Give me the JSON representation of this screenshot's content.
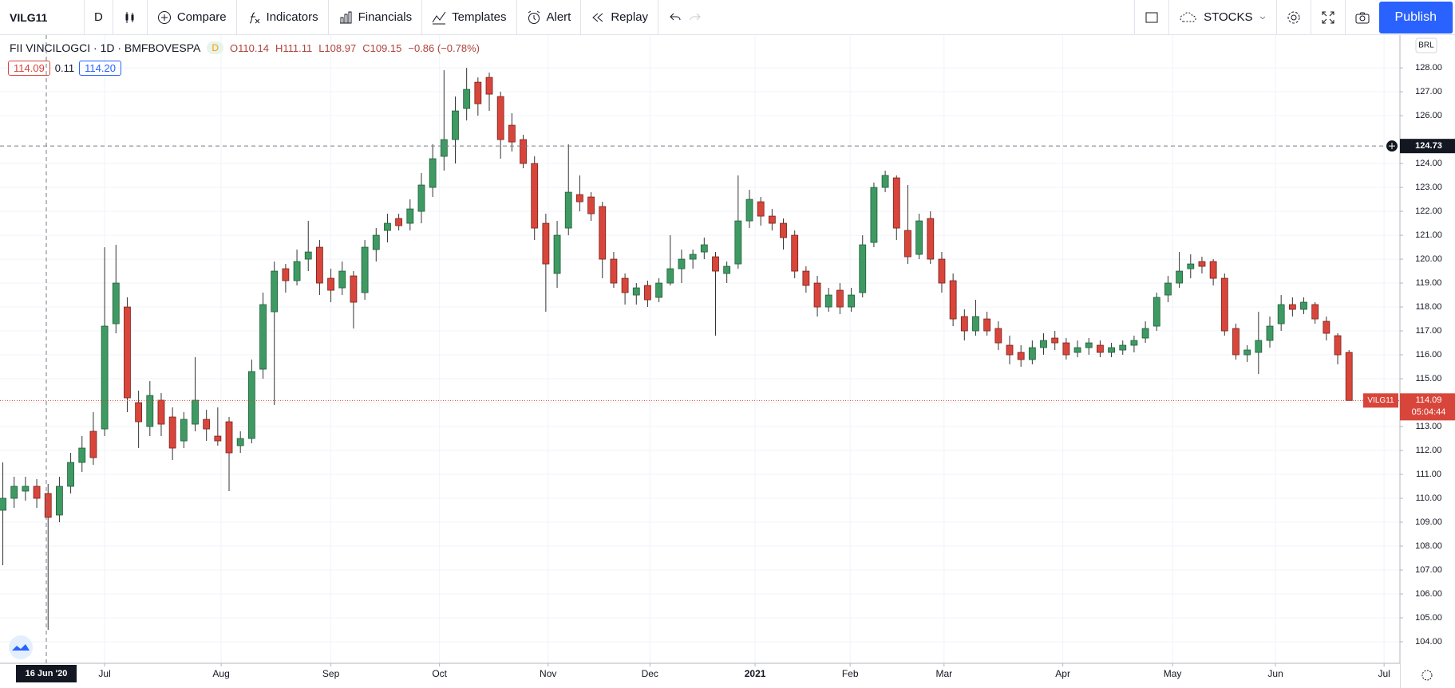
{
  "toolbar": {
    "symbol": "VILG11",
    "interval": "D",
    "buttons": [
      "Compare",
      "Indicators",
      "Financials",
      "Templates",
      "Alert",
      "Replay"
    ],
    "market": "STOCKS",
    "publish": "Publish"
  },
  "legend": {
    "title": "FII VINCILOGCI · 1D · BMFBOVESPA",
    "flag": "D",
    "open": "O110.14",
    "high": "H111.11",
    "low": "L108.97",
    "close": "C109.15",
    "change": "−0.86 (−0.78%)"
  },
  "bid_ask": {
    "bid": "114.09",
    "spread": "0.11",
    "ask": "114.20"
  },
  "currency": "BRL",
  "chart_data": {
    "type": "candlestick",
    "up_color": "#3e9a62",
    "down_color": "#d8463b",
    "ohlc": [
      [
        109.5,
        111.5,
        107.2,
        110.0
      ],
      [
        110.0,
        110.9,
        109.6,
        110.5
      ],
      [
        110.3,
        110.9,
        109.9,
        110.5
      ],
      [
        110.5,
        110.8,
        109.6,
        110.0
      ],
      [
        110.2,
        110.6,
        104.5,
        109.2
      ],
      [
        109.3,
        110.9,
        109.0,
        110.5
      ],
      [
        110.5,
        111.9,
        110.2,
        111.5
      ],
      [
        111.5,
        112.6,
        111.1,
        112.1
      ],
      [
        112.8,
        113.6,
        111.4,
        111.7
      ],
      [
        112.9,
        120.5,
        112.6,
        117.2
      ],
      [
        117.3,
        120.6,
        116.9,
        119.0
      ],
      [
        118.0,
        118.4,
        113.6,
        114.2
      ],
      [
        114.0,
        114.5,
        112.1,
        113.2
      ],
      [
        113.0,
        114.9,
        112.6,
        114.3
      ],
      [
        114.1,
        114.4,
        112.6,
        113.1
      ],
      [
        113.4,
        113.8,
        111.6,
        112.1
      ],
      [
        112.4,
        113.6,
        112.1,
        113.3
      ],
      [
        113.1,
        115.9,
        112.8,
        114.1
      ],
      [
        113.3,
        113.7,
        112.4,
        112.9
      ],
      [
        112.6,
        113.8,
        112.2,
        112.4
      ],
      [
        113.2,
        113.4,
        110.3,
        111.9
      ],
      [
        112.2,
        112.8,
        111.9,
        112.5
      ],
      [
        112.5,
        115.8,
        112.3,
        115.3
      ],
      [
        115.4,
        118.6,
        115.0,
        118.1
      ],
      [
        117.8,
        119.9,
        113.9,
        119.5
      ],
      [
        119.6,
        119.8,
        118.6,
        119.1
      ],
      [
        119.1,
        120.4,
        118.9,
        119.9
      ],
      [
        120.0,
        121.6,
        119.5,
        120.3
      ],
      [
        120.5,
        120.8,
        118.5,
        119.0
      ],
      [
        119.2,
        119.6,
        118.2,
        118.7
      ],
      [
        118.8,
        119.9,
        118.5,
        119.5
      ],
      [
        119.3,
        119.5,
        117.1,
        118.2
      ],
      [
        118.6,
        120.8,
        118.3,
        120.5
      ],
      [
        120.4,
        121.3,
        119.9,
        121.0
      ],
      [
        121.2,
        121.9,
        120.7,
        121.5
      ],
      [
        121.7,
        121.9,
        121.2,
        121.4
      ],
      [
        121.5,
        122.5,
        121.2,
        122.1
      ],
      [
        122.0,
        123.6,
        121.5,
        123.1
      ],
      [
        123.0,
        124.8,
        122.6,
        124.2
      ],
      [
        124.3,
        127.9,
        123.7,
        125.0
      ],
      [
        125.0,
        126.8,
        124.0,
        126.2
      ],
      [
        126.3,
        128.0,
        125.8,
        127.1
      ],
      [
        127.4,
        127.6,
        126.0,
        126.5
      ],
      [
        127.6,
        127.8,
        126.2,
        126.9
      ],
      [
        126.8,
        127.0,
        124.2,
        125.0
      ],
      [
        125.6,
        126.1,
        124.5,
        124.9
      ],
      [
        125.0,
        125.2,
        123.8,
        124.0
      ],
      [
        124.0,
        124.3,
        120.8,
        121.3
      ],
      [
        121.5,
        121.9,
        117.8,
        119.8
      ],
      [
        119.4,
        121.6,
        118.8,
        121.0
      ],
      [
        121.3,
        124.8,
        121.0,
        122.8
      ],
      [
        122.7,
        123.5,
        122.0,
        122.4
      ],
      [
        122.6,
        122.8,
        121.6,
        121.9
      ],
      [
        122.2,
        122.4,
        119.2,
        120.0
      ],
      [
        120.0,
        120.3,
        118.8,
        119.0
      ],
      [
        119.2,
        119.4,
        118.1,
        118.6
      ],
      [
        118.5,
        119.0,
        118.1,
        118.8
      ],
      [
        118.9,
        119.1,
        118.0,
        118.3
      ],
      [
        118.4,
        119.2,
        118.2,
        119.0
      ],
      [
        119.0,
        121.0,
        118.9,
        119.6
      ],
      [
        119.6,
        120.4,
        119.0,
        120.0
      ],
      [
        120.0,
        120.4,
        119.6,
        120.2
      ],
      [
        120.3,
        120.9,
        120.0,
        120.6
      ],
      [
        120.1,
        120.3,
        116.8,
        119.5
      ],
      [
        119.4,
        119.9,
        119.0,
        119.7
      ],
      [
        119.8,
        123.5,
        119.6,
        121.6
      ],
      [
        121.6,
        122.9,
        121.3,
        122.5
      ],
      [
        122.4,
        122.6,
        121.4,
        121.8
      ],
      [
        121.8,
        122.1,
        121.2,
        121.5
      ],
      [
        121.5,
        121.7,
        120.4,
        120.9
      ],
      [
        121.0,
        121.2,
        119.2,
        119.5
      ],
      [
        119.5,
        119.7,
        118.6,
        118.9
      ],
      [
        119.0,
        119.3,
        117.6,
        118.0
      ],
      [
        118.0,
        118.8,
        117.8,
        118.5
      ],
      [
        118.7,
        119.0,
        117.7,
        118.0
      ],
      [
        118.0,
        118.8,
        117.8,
        118.5
      ],
      [
        118.6,
        121.0,
        118.4,
        120.6
      ],
      [
        120.7,
        123.2,
        120.5,
        123.0
      ],
      [
        123.0,
        123.7,
        122.8,
        123.5
      ],
      [
        123.4,
        123.5,
        120.8,
        121.3
      ],
      [
        121.2,
        123.1,
        119.8,
        120.1
      ],
      [
        120.2,
        121.9,
        120.0,
        121.6
      ],
      [
        121.7,
        122.0,
        119.8,
        120.0
      ],
      [
        120.0,
        120.3,
        118.6,
        119.0
      ],
      [
        119.1,
        119.4,
        117.2,
        117.5
      ],
      [
        117.6,
        117.9,
        116.6,
        117.0
      ],
      [
        117.0,
        118.3,
        116.8,
        117.6
      ],
      [
        117.5,
        117.8,
        116.8,
        117.0
      ],
      [
        117.1,
        117.4,
        116.2,
        116.5
      ],
      [
        116.4,
        116.8,
        115.6,
        116.0
      ],
      [
        116.1,
        116.4,
        115.5,
        115.8
      ],
      [
        115.8,
        116.6,
        115.6,
        116.3
      ],
      [
        116.3,
        116.9,
        116.0,
        116.6
      ],
      [
        116.7,
        117.0,
        116.2,
        116.5
      ],
      [
        116.5,
        116.7,
        115.8,
        116.0
      ],
      [
        116.1,
        116.6,
        115.9,
        116.3
      ],
      [
        116.3,
        116.7,
        116.0,
        116.5
      ],
      [
        116.4,
        116.6,
        115.9,
        116.1
      ],
      [
        116.1,
        116.5,
        115.9,
        116.3
      ],
      [
        116.2,
        116.6,
        116.0,
        116.4
      ],
      [
        116.4,
        116.8,
        116.1,
        116.6
      ],
      [
        116.7,
        117.4,
        116.5,
        117.1
      ],
      [
        117.2,
        118.6,
        117.0,
        118.4
      ],
      [
        118.5,
        119.3,
        118.2,
        119.0
      ],
      [
        119.0,
        120.3,
        118.8,
        119.5
      ],
      [
        119.6,
        120.2,
        119.2,
        119.8
      ],
      [
        119.9,
        120.1,
        119.4,
        119.7
      ],
      [
        119.9,
        120.0,
        118.9,
        119.2
      ],
      [
        119.2,
        119.4,
        116.8,
        117.0
      ],
      [
        117.1,
        117.3,
        115.8,
        116.0
      ],
      [
        116.0,
        116.4,
        115.7,
        116.2
      ],
      [
        116.1,
        117.8,
        115.2,
        116.6
      ],
      [
        116.6,
        117.6,
        116.3,
        117.2
      ],
      [
        117.3,
        118.5,
        117.0,
        118.1
      ],
      [
        118.1,
        118.4,
        117.6,
        117.9
      ],
      [
        117.9,
        118.4,
        117.7,
        118.2
      ],
      [
        118.1,
        118.2,
        117.3,
        117.5
      ],
      [
        117.4,
        117.6,
        116.6,
        116.9
      ],
      [
        116.8,
        116.9,
        115.6,
        116.0
      ],
      [
        116.1,
        116.2,
        114.09,
        114.09
      ]
    ],
    "xlim": [
      -0.25,
      123.5
    ],
    "xticks": [
      {
        "value": 9.0,
        "label": "Jul"
      },
      {
        "value": 19.3,
        "label": "Aug"
      },
      {
        "value": 29.0,
        "label": "Sep"
      },
      {
        "value": 38.6,
        "label": "Oct"
      },
      {
        "value": 48.2,
        "label": "Nov"
      },
      {
        "value": 57.2,
        "label": "Dec"
      },
      {
        "value": 66.5,
        "label": "2021"
      },
      {
        "value": 74.9,
        "label": "Feb"
      },
      {
        "value": 83.2,
        "label": "Mar"
      },
      {
        "value": 93.7,
        "label": "Apr"
      },
      {
        "value": 103.4,
        "label": "May"
      },
      {
        "value": 112.5,
        "label": "Jun"
      },
      {
        "value": 122.1,
        "label": "Jul"
      }
    ],
    "ylim": [
      103.1,
      129.37
    ],
    "yticks": [
      {
        "value": 104,
        "label": "104.00"
      },
      {
        "value": 105,
        "label": "105.00"
      },
      {
        "value": 106,
        "label": "106.00"
      },
      {
        "value": 107,
        "label": "107.00"
      },
      {
        "value": 108,
        "label": "108.00"
      },
      {
        "value": 109,
        "label": "109.00"
      },
      {
        "value": 110,
        "label": "110.00"
      },
      {
        "value": 111,
        "label": "111.00"
      },
      {
        "value": 112,
        "label": "112.00"
      },
      {
        "value": 113,
        "label": "113.00"
      },
      {
        "value": 114,
        "label": "114.00"
      },
      {
        "value": 115,
        "label": "115.00"
      },
      {
        "value": 116,
        "label": "116.00"
      },
      {
        "value": 117,
        "label": "117.00"
      },
      {
        "value": 118,
        "label": "118.00"
      },
      {
        "value": 119,
        "label": "119.00"
      },
      {
        "value": 120,
        "label": "120.00"
      },
      {
        "value": 121,
        "label": "121.00"
      },
      {
        "value": 122,
        "label": "122.00"
      },
      {
        "value": 123,
        "label": "123.00"
      },
      {
        "value": 124,
        "label": "124.00"
      },
      {
        "value": 126,
        "label": "126.00"
      },
      {
        "value": 127,
        "label": "127.00"
      },
      {
        "value": 128,
        "label": "128.00"
      }
    ],
    "grid": true,
    "last_price": {
      "value": 114.09,
      "label": "114.09",
      "symbol": "VILG11",
      "countdown": "05:04:44"
    },
    "crosshair": {
      "value": 124.73,
      "label": "124.73",
      "date": "16 Jun '20"
    }
  }
}
